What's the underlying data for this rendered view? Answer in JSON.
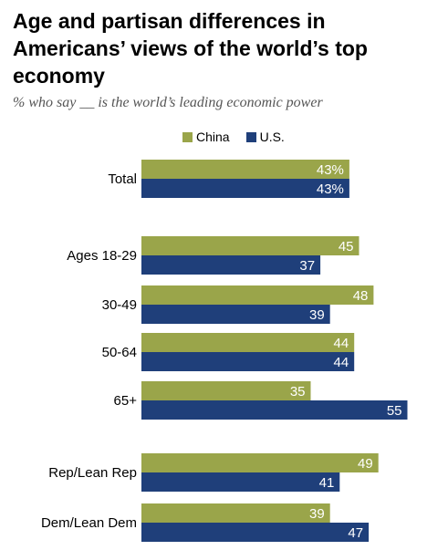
{
  "title": "Age and partisan differences in Americans’ views of the world’s top economy",
  "subtitle": "% who say __ is the world’s leading economic power",
  "colors": {
    "China": "#9aa54a",
    "U.S.": "#1f3f7a"
  },
  "chart_data": {
    "type": "bar",
    "orientation": "horizontal",
    "categories": [
      "Total",
      "Ages 18-29",
      "30-49",
      "50-64",
      "65+",
      "Rep/Lean Rep",
      "Dem/Lean Dem"
    ],
    "series": [
      {
        "name": "China",
        "values": [
          43,
          45,
          48,
          44,
          35,
          49,
          39
        ],
        "labels": [
          "43%",
          "45",
          "48",
          "44",
          "35",
          "49",
          "39"
        ]
      },
      {
        "name": "U.S.",
        "values": [
          43,
          37,
          39,
          44,
          55,
          41,
          47
        ],
        "labels": [
          "43%",
          "37",
          "39",
          "44",
          "55",
          "41",
          "47"
        ]
      }
    ],
    "legend": "top",
    "grid": false
  }
}
